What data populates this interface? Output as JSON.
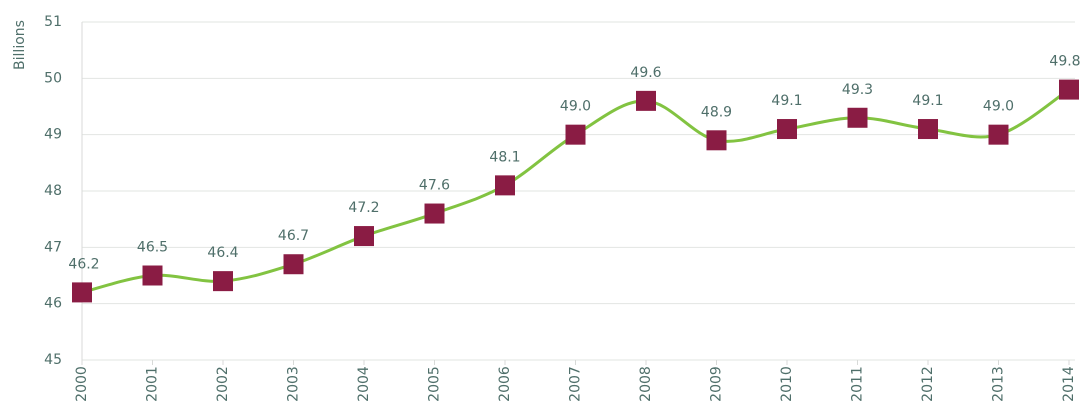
{
  "chart_data": {
    "type": "line",
    "y_label": "Billions",
    "categories": [
      "2000",
      "2001",
      "2002",
      "2003",
      "2004",
      "2005",
      "2006",
      "2007",
      "2008",
      "2009",
      "2010",
      "2011",
      "2012",
      "2013",
      "2014"
    ],
    "series": [
      {
        "name": "Billions",
        "color": "#82c341",
        "marker_color": "#8a1c44",
        "values": [
          46.2,
          46.5,
          46.4,
          46.7,
          47.2,
          47.6,
          48.1,
          49.0,
          49.6,
          48.9,
          49.1,
          49.3,
          49.1,
          49.0,
          49.8
        ],
        "value_labels": [
          "46.2",
          "46.5",
          "46.4",
          "46.7",
          "47.2",
          "47.6",
          "48.1",
          "49.0",
          "49.6",
          "48.9",
          "49.1",
          "49.3",
          "49.1",
          "49.0",
          "49.8"
        ]
      }
    ],
    "ylim": [
      45,
      51
    ],
    "yticks": [
      45,
      46,
      47,
      48,
      49,
      50,
      51
    ],
    "grid": true
  }
}
